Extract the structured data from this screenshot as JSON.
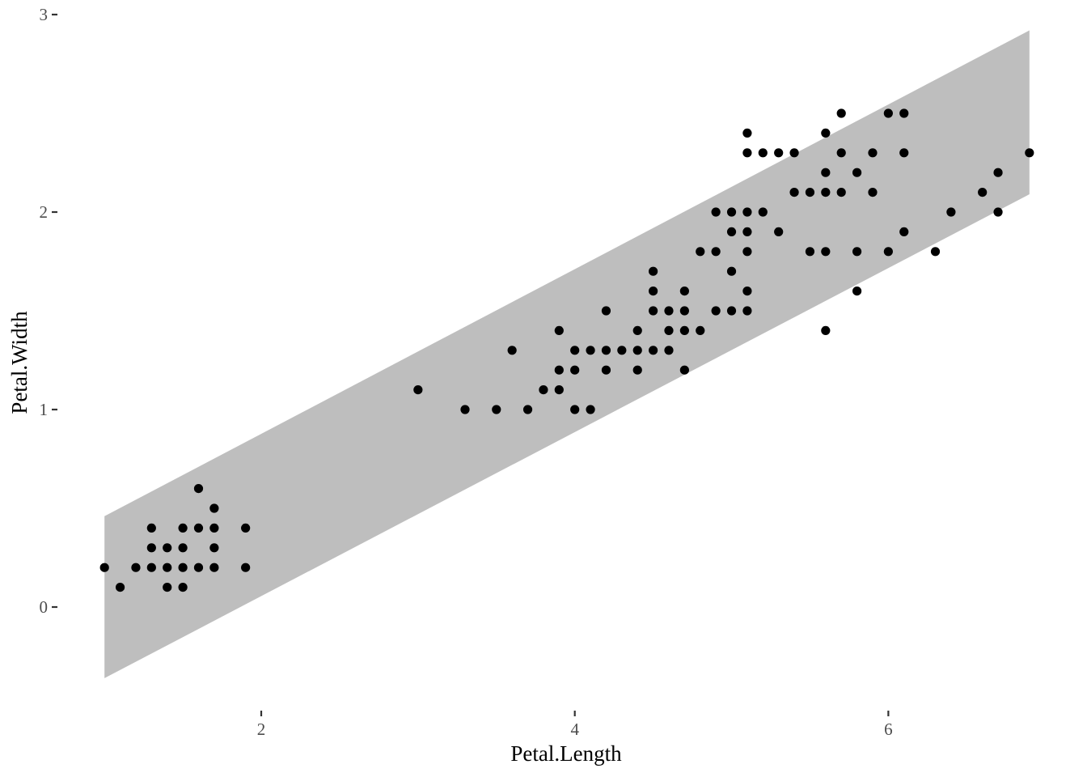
{
  "chart_data": {
    "type": "scatter",
    "title": "",
    "xlabel": "Petal.Length",
    "ylabel": "Petal.Width",
    "xlim": [
      0.705,
      7.195
    ],
    "ylim": [
      -0.5,
      3.0
    ],
    "x_ticks": [
      2,
      4,
      6
    ],
    "y_ticks": [
      0,
      1,
      2,
      3
    ],
    "grid": false,
    "legend": "none",
    "colors": {
      "points": "#000000",
      "band": "#bebebe",
      "tick_text": "#4d4d4d",
      "tick_marks": "#333333"
    },
    "band": {
      "x": [
        1.0,
        6.9
      ],
      "upper": [
        0.46,
        2.92
      ],
      "lower": [
        -0.36,
        2.09
      ]
    },
    "points": [
      [
        1.0,
        0.2
      ],
      [
        1.1,
        0.1
      ],
      [
        1.2,
        0.2
      ],
      [
        1.3,
        0.2
      ],
      [
        1.3,
        0.3
      ],
      [
        1.3,
        0.4
      ],
      [
        1.4,
        0.1
      ],
      [
        1.4,
        0.2
      ],
      [
        1.4,
        0.3
      ],
      [
        1.5,
        0.1
      ],
      [
        1.5,
        0.2
      ],
      [
        1.5,
        0.3
      ],
      [
        1.5,
        0.4
      ],
      [
        1.6,
        0.2
      ],
      [
        1.6,
        0.4
      ],
      [
        1.6,
        0.6
      ],
      [
        1.7,
        0.2
      ],
      [
        1.7,
        0.3
      ],
      [
        1.7,
        0.4
      ],
      [
        1.7,
        0.5
      ],
      [
        1.9,
        0.2
      ],
      [
        1.9,
        0.4
      ],
      [
        3.0,
        1.1
      ],
      [
        3.3,
        1.0
      ],
      [
        3.5,
        1.0
      ],
      [
        3.6,
        1.3
      ],
      [
        3.7,
        1.0
      ],
      [
        3.8,
        1.1
      ],
      [
        3.9,
        1.1
      ],
      [
        3.9,
        1.2
      ],
      [
        3.9,
        1.4
      ],
      [
        4.0,
        1.0
      ],
      [
        4.0,
        1.2
      ],
      [
        4.0,
        1.3
      ],
      [
        4.1,
        1.0
      ],
      [
        4.1,
        1.3
      ],
      [
        4.2,
        1.2
      ],
      [
        4.2,
        1.3
      ],
      [
        4.2,
        1.5
      ],
      [
        4.3,
        1.3
      ],
      [
        4.4,
        1.2
      ],
      [
        4.4,
        1.3
      ],
      [
        4.4,
        1.4
      ],
      [
        4.5,
        1.3
      ],
      [
        4.5,
        1.5
      ],
      [
        4.5,
        1.6
      ],
      [
        4.5,
        1.7
      ],
      [
        4.6,
        1.3
      ],
      [
        4.6,
        1.4
      ],
      [
        4.6,
        1.5
      ],
      [
        4.7,
        1.2
      ],
      [
        4.7,
        1.4
      ],
      [
        4.7,
        1.5
      ],
      [
        4.7,
        1.6
      ],
      [
        4.8,
        1.4
      ],
      [
        4.8,
        1.8
      ],
      [
        4.9,
        1.5
      ],
      [
        4.9,
        1.8
      ],
      [
        4.9,
        2.0
      ],
      [
        5.0,
        1.5
      ],
      [
        5.0,
        1.7
      ],
      [
        5.0,
        1.9
      ],
      [
        5.0,
        2.0
      ],
      [
        5.1,
        1.5
      ],
      [
        5.1,
        1.6
      ],
      [
        5.1,
        1.8
      ],
      [
        5.1,
        1.9
      ],
      [
        5.1,
        2.0
      ],
      [
        5.1,
        2.3
      ],
      [
        5.1,
        2.4
      ],
      [
        5.2,
        2.0
      ],
      [
        5.2,
        2.3
      ],
      [
        5.3,
        1.9
      ],
      [
        5.3,
        2.3
      ],
      [
        5.4,
        2.1
      ],
      [
        5.4,
        2.3
      ],
      [
        5.5,
        1.8
      ],
      [
        5.5,
        2.1
      ],
      [
        5.6,
        1.4
      ],
      [
        5.6,
        1.8
      ],
      [
        5.6,
        2.1
      ],
      [
        5.6,
        2.2
      ],
      [
        5.6,
        2.4
      ],
      [
        5.7,
        2.1
      ],
      [
        5.7,
        2.3
      ],
      [
        5.7,
        2.5
      ],
      [
        5.8,
        1.6
      ],
      [
        5.8,
        1.8
      ],
      [
        5.8,
        2.2
      ],
      [
        5.9,
        2.1
      ],
      [
        5.9,
        2.3
      ],
      [
        6.0,
        1.8
      ],
      [
        6.0,
        2.5
      ],
      [
        6.1,
        1.9
      ],
      [
        6.1,
        2.3
      ],
      [
        6.1,
        2.5
      ],
      [
        6.3,
        1.8
      ],
      [
        6.4,
        2.0
      ],
      [
        6.6,
        2.1
      ],
      [
        6.7,
        2.0
      ],
      [
        6.7,
        2.2
      ],
      [
        6.9,
        2.3
      ]
    ]
  }
}
